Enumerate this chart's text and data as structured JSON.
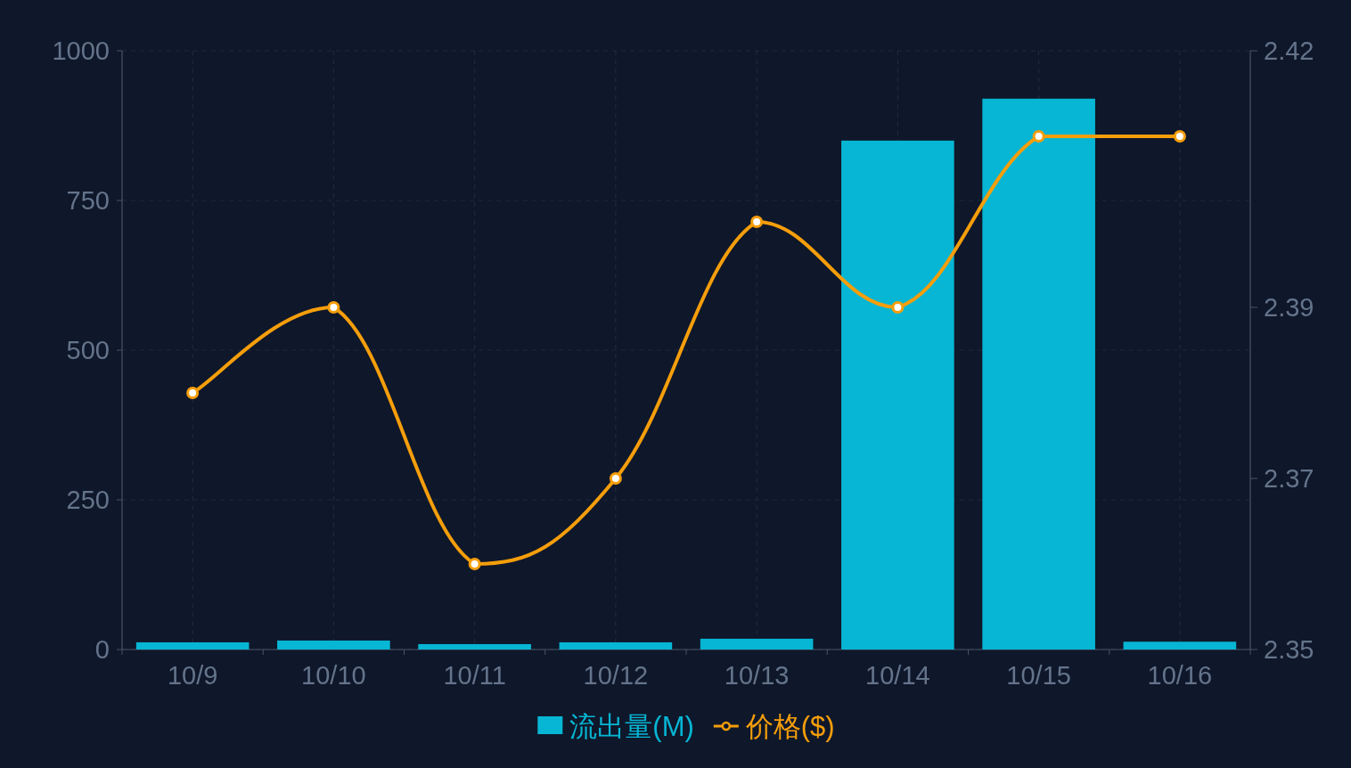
{
  "chart_data": {
    "type": "bar",
    "categories": [
      "10/9",
      "10/10",
      "10/11",
      "10/12",
      "10/13",
      "10/14",
      "10/15",
      "10/16"
    ],
    "series": [
      {
        "name": "流出量(M)",
        "color": "#06b6d4",
        "values": [
          12,
          15,
          9,
          12,
          18,
          850,
          920,
          13
        ]
      },
      {
        "name": "价格($)",
        "type": "line",
        "axis": "y2",
        "color": "#f59e0b",
        "values": [
          2.38,
          2.39,
          2.36,
          2.37,
          2.4,
          2.39,
          2.41,
          2.41
        ]
      }
    ],
    "ylim": [
      0,
      1000
    ],
    "yticks": [
      0,
      250,
      500,
      750,
      1000
    ],
    "y2lim": [
      2.35,
      2.42
    ],
    "y2ticks": [
      2.35,
      2.37,
      2.39,
      2.42
    ],
    "grid": true,
    "legend": "bottom",
    "marker": "circle"
  }
}
